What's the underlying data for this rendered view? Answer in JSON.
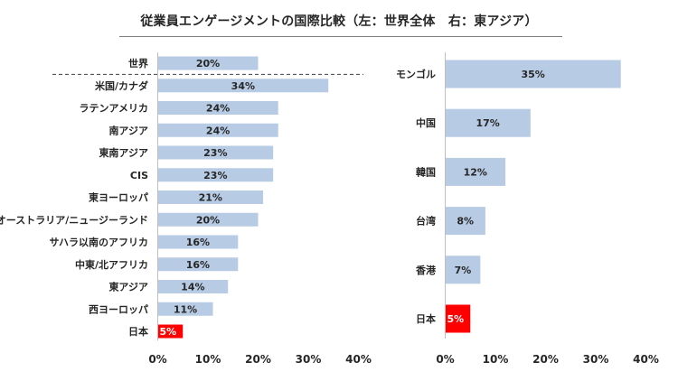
{
  "title": "従業員エンゲージメントの国際比較（左：世界全体　右：東アジア）",
  "colors": {
    "bar": "#b7cbe4",
    "highlight": "#ff0000",
    "axis": "#bfbfbf",
    "separator": "#404040"
  },
  "chart_data": [
    {
      "type": "bar",
      "orientation": "horizontal",
      "categories": [
        "世界",
        "米国/カナダ",
        "ラテンアメリカ",
        "南アジア",
        "東南アジア",
        "CIS",
        "東ヨーロッパ",
        "オーストラリア/ニュージーランド",
        "サハラ以南のアフリカ",
        "中東/北アフリカ",
        "東アジア",
        "西ヨーロッパ",
        "日本"
      ],
      "values": [
        20,
        34,
        24,
        24,
        23,
        23,
        21,
        20,
        16,
        16,
        14,
        11,
        5
      ],
      "value_labels": [
        "20%",
        "34%",
        "24%",
        "24%",
        "23%",
        "23%",
        "21%",
        "20%",
        "16%",
        "16%",
        "14%",
        "11%",
        "5%"
      ],
      "highlight": "日本",
      "xlim": [
        0,
        40
      ],
      "xticks": [
        "0%",
        "10%",
        "20%",
        "30%",
        "40%"
      ],
      "separator_after": "世界",
      "grid": false
    },
    {
      "type": "bar",
      "orientation": "horizontal",
      "categories": [
        "モンゴル",
        "中国",
        "韓国",
        "台湾",
        "香港",
        "日本"
      ],
      "values": [
        35,
        17,
        12,
        8,
        7,
        5
      ],
      "value_labels": [
        "35%",
        "17%",
        "12%",
        "8%",
        "7%",
        "5%"
      ],
      "highlight": "日本",
      "xlim": [
        0,
        40
      ],
      "xticks": [
        "0%",
        "10%",
        "20%",
        "30%",
        "40%"
      ],
      "grid": false
    }
  ]
}
